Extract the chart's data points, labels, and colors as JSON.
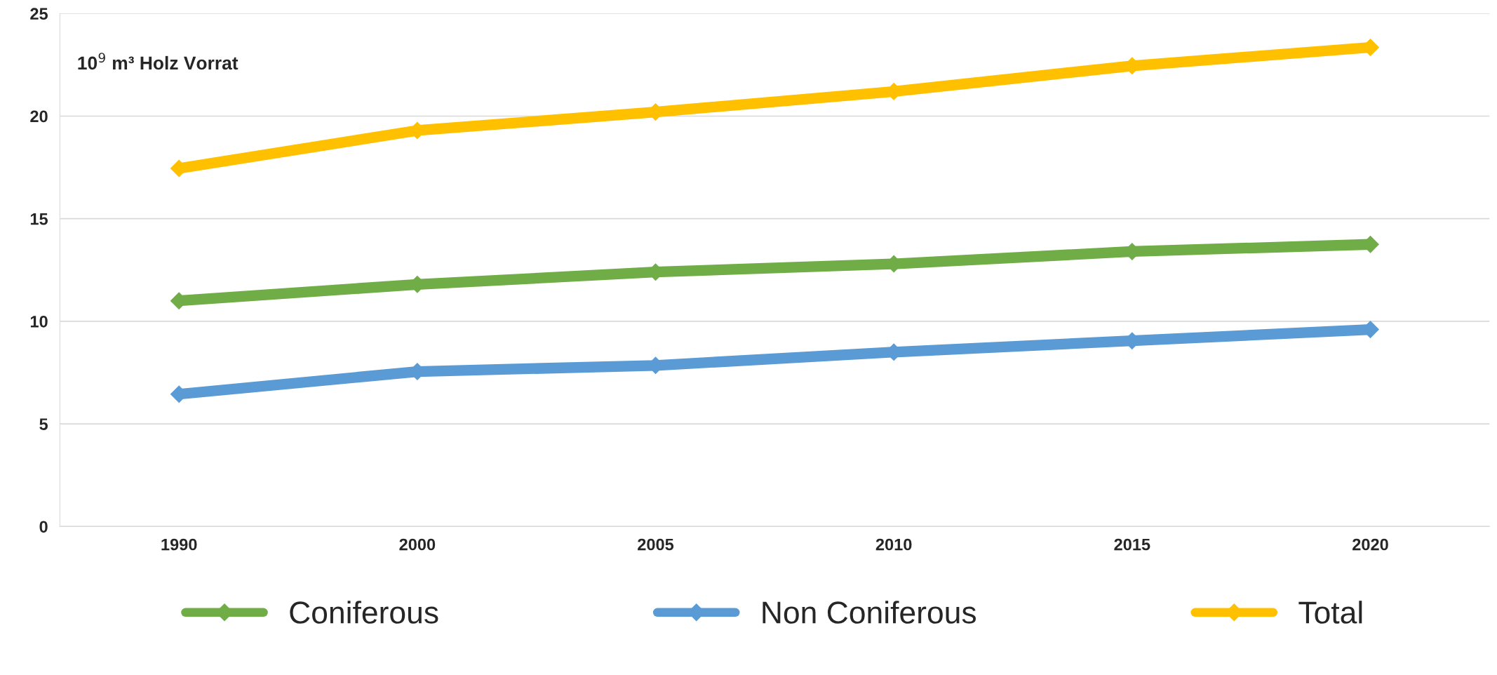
{
  "chart_data": {
    "type": "line",
    "categories": [
      "1990",
      "2000",
      "2005",
      "2010",
      "2015",
      "2020"
    ],
    "series": [
      {
        "name": "Coniferous",
        "color": "#70ad47",
        "values": [
          11.0,
          11.8,
          12.4,
          12.8,
          13.4,
          13.75
        ]
      },
      {
        "name": "Non Coniferous",
        "color": "#5b9bd5",
        "values": [
          6.45,
          7.55,
          7.85,
          8.5,
          9.05,
          9.6
        ]
      },
      {
        "name": "Total",
        "color": "#ffc000",
        "values": [
          17.45,
          19.3,
          20.2,
          21.2,
          22.45,
          23.35
        ]
      }
    ],
    "annotations": [
      "10$^{9}$ m³ Holz Vorrat"
    ],
    "ylim": [
      0,
      25
    ],
    "yticks": [
      0,
      5,
      10,
      15,
      20,
      25
    ],
    "grid": "y",
    "legend": "bottom",
    "marker": "diamond",
    "line_style": "solid"
  }
}
